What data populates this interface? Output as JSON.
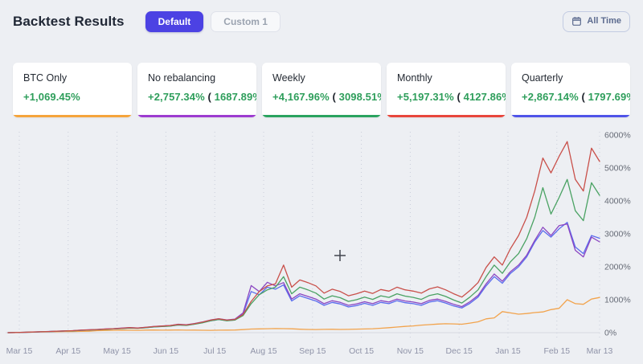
{
  "header": {
    "title": "Backtest Results",
    "tabs": [
      {
        "label": "Default",
        "active": true
      },
      {
        "label": "Custom 1",
        "active": false
      }
    ],
    "time_range_button": {
      "label": "All Time",
      "icon": "calendar-icon"
    }
  },
  "stat_cards": [
    {
      "label": "BTC Only",
      "value": "+1,069.45%",
      "secondary": null,
      "accent": "#f5a43b"
    },
    {
      "label": "No rebalancing",
      "value": "+2,757.34%",
      "secondary": "1687.89%",
      "accent": "#9d3bd0"
    },
    {
      "label": "Weekly",
      "value": "+4,167.96%",
      "secondary": "3098.51%",
      "accent": "#2aa35f"
    },
    {
      "label": "Monthly",
      "value": "+5,197.31%",
      "secondary": "4127.86%",
      "accent": "#e8463c"
    },
    {
      "label": "Quarterly",
      "value": "+2,867.14%",
      "secondary": "1797.69%",
      "accent": "#4f54e8"
    }
  ],
  "chart_data": {
    "type": "line",
    "title": "",
    "xlabel": "",
    "ylabel": "",
    "ylim": [
      0,
      6000
    ],
    "grid": "vertical-dotted",
    "legend_position": "none",
    "y_ticks": [
      "0%",
      "1000%",
      "2000%",
      "3000%",
      "4000%",
      "5000%",
      "6000%"
    ],
    "x_tick_labels": [
      "Mar 15",
      "Apr 15",
      "May 15",
      "Jun 15",
      "Jul 15",
      "Aug 15",
      "Sep 15",
      "Oct 15",
      "Nov 15",
      "Dec 15",
      "Jan 15",
      "Feb 15",
      "Mar 13"
    ],
    "cursor": {
      "x": 423,
      "y": 318
    },
    "series": [
      {
        "name": "BTC Only",
        "color": "#f2a34c",
        "values": [
          0,
          3,
          8,
          15,
          22,
          25,
          30,
          33,
          35,
          40,
          45,
          60,
          68,
          70,
          78,
          72,
          70,
          78,
          80,
          76,
          78,
          82,
          75,
          78,
          72,
          70,
          75,
          78,
          80,
          92,
          110,
          115,
          120,
          125,
          122,
          118,
          105,
          98,
          95,
          100,
          102,
          98,
          100,
          108,
          112,
          120,
          135,
          150,
          170,
          190,
          205,
          230,
          245,
          260,
          270,
          265,
          255,
          290,
          330,
          420,
          450,
          640,
          600,
          560,
          580,
          610,
          630,
          700,
          740,
          1000,
          880,
          860,
          1020,
          1069
        ]
      },
      {
        "name": "Quarterly",
        "color": "#5a6cee",
        "values": [
          0,
          4,
          10,
          17,
          25,
          32,
          41,
          49,
          56,
          70,
          80,
          90,
          104,
          114,
          128,
          142,
          133,
          152,
          175,
          190,
          203,
          237,
          224,
          258,
          305,
          362,
          400,
          365,
          385,
          560,
          1250,
          1150,
          1380,
          1320,
          1450,
          960,
          1120,
          1040,
          960,
          830,
          920,
          870,
          780,
          820,
          890,
          830,
          920,
          880,
          970,
          910,
          880,
          830,
          930,
          970,
          900,
          810,
          750,
          890,
          1080,
          1420,
          1700,
          1500,
          1800,
          2000,
          2300,
          2750,
          3100,
          2900,
          3150,
          3350,
          2600,
          2400,
          2950,
          2867
        ]
      },
      {
        "name": "No rebalancing",
        "color": "#8b46c2",
        "values": [
          0,
          5,
          12,
          20,
          28,
          36,
          46,
          54,
          62,
          77,
          88,
          98,
          112,
          123,
          138,
          153,
          143,
          163,
          188,
          205,
          218,
          255,
          240,
          275,
          325,
          385,
          425,
          385,
          410,
          600,
          1430,
          1250,
          1530,
          1420,
          1520,
          1020,
          1180,
          1100,
          1020,
          880,
          970,
          920,
          830,
          870,
          940,
          880,
          970,
          930,
          1020,
          960,
          930,
          880,
          980,
          1020,
          950,
          860,
          790,
          940,
          1130,
          1480,
          1780,
          1560,
          1850,
          2050,
          2350,
          2800,
          3200,
          2950,
          3250,
          3300,
          2500,
          2300,
          2900,
          2757
        ]
      },
      {
        "name": "Weekly",
        "color": "#4aa263",
        "values": [
          0,
          5,
          11,
          18,
          26,
          33,
          42,
          50,
          57,
          70,
          80,
          90,
          103,
          113,
          127,
          140,
          132,
          150,
          172,
          188,
          200,
          232,
          220,
          255,
          300,
          360,
          400,
          362,
          382,
          520,
          880,
          1150,
          1300,
          1380,
          1700,
          1180,
          1380,
          1300,
          1200,
          1020,
          1120,
          1060,
          950,
          1000,
          1080,
          1010,
          1120,
          1070,
          1180,
          1110,
          1070,
          1010,
          1130,
          1180,
          1100,
          990,
          900,
          1080,
          1300,
          1700,
          2050,
          1800,
          2150,
          2400,
          2850,
          3500,
          4400,
          3600,
          4100,
          4650,
          3700,
          3400,
          4550,
          4168
        ]
      },
      {
        "name": "Monthly",
        "color": "#c9504a",
        "values": [
          0,
          5,
          12,
          20,
          28,
          35,
          45,
          52,
          60,
          75,
          85,
          95,
          110,
          120,
          135,
          150,
          140,
          160,
          185,
          200,
          215,
          250,
          235,
          270,
          320,
          380,
          420,
          380,
          400,
          550,
          950,
          1250,
          1420,
          1480,
          2050,
          1380,
          1600,
          1520,
          1420,
          1200,
          1320,
          1250,
          1120,
          1180,
          1260,
          1190,
          1310,
          1260,
          1380,
          1300,
          1260,
          1200,
          1330,
          1390,
          1300,
          1180,
          1080,
          1280,
          1520,
          1980,
          2300,
          2050,
          2550,
          2950,
          3500,
          4300,
          5300,
          4850,
          5350,
          5800,
          4650,
          4300,
          5600,
          5197
        ]
      }
    ]
  }
}
